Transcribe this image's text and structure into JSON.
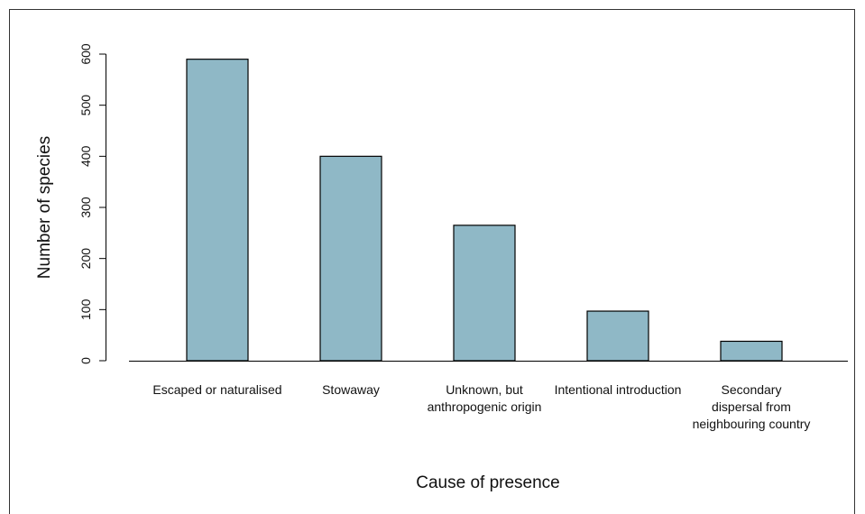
{
  "chart_data": {
    "type": "bar",
    "categories": [
      [
        "Escaped or naturalised"
      ],
      [
        "Stowaway"
      ],
      [
        "Unknown, but",
        "anthropogenic origin"
      ],
      [
        "Intentional introduction"
      ],
      [
        "Secondary",
        "dispersal from",
        "neighbouring country"
      ]
    ],
    "values": [
      590,
      400,
      265,
      97,
      38
    ],
    "ylim": [
      0,
      600
    ],
    "yticks": [
      0,
      100,
      200,
      300,
      400,
      500,
      600
    ],
    "xlabel": "Cause of presence",
    "ylabel": "Number of species",
    "grid": false,
    "bar_color": "#8fb8c6"
  }
}
